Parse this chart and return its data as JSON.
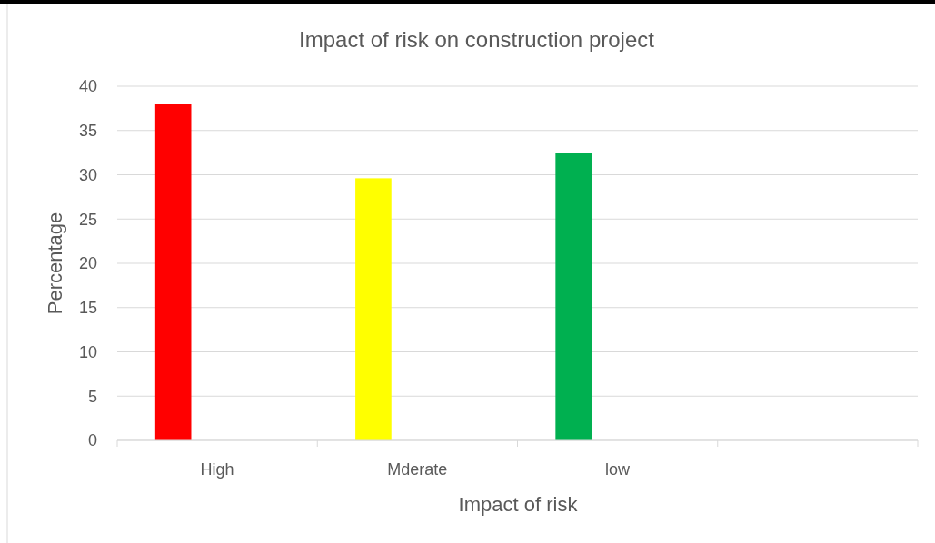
{
  "chart_data": {
    "type": "bar",
    "title": "Impact of risk on construction project",
    "xlabel": "Impact of risk",
    "ylabel": "Percentage",
    "categories": [
      "High",
      "Mderate",
      "low",
      null
    ],
    "values": [
      38,
      29.6,
      32.5,
      null
    ],
    "colors": [
      "#ff0000",
      "#ffff00",
      "#00b050",
      null
    ],
    "ylim": [
      0,
      40
    ],
    "yticks": [
      0,
      5,
      10,
      15,
      20,
      25,
      30,
      35,
      40
    ],
    "grid": "y"
  }
}
